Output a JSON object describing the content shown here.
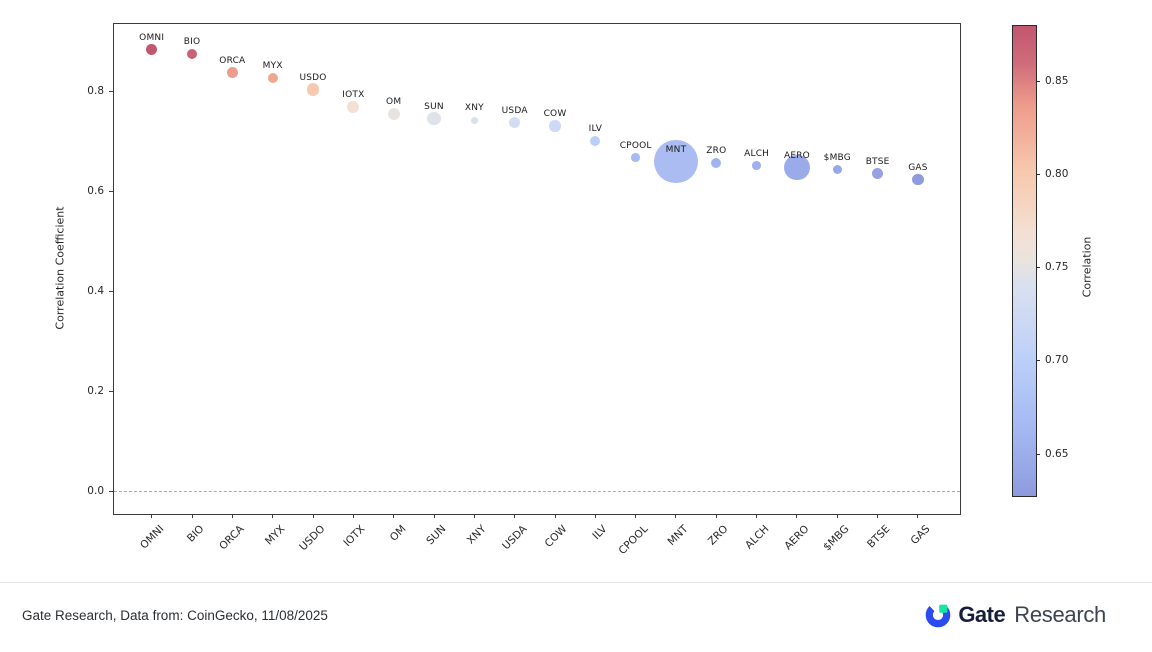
{
  "chart_data": {
    "type": "scatter",
    "title": "",
    "xlabel": "",
    "ylabel": "Correlation Coefficient",
    "ylim": [
      -0.046,
      0.934
    ],
    "grid": false,
    "y_ticks": [
      {
        "label": "0.0",
        "value": 0.0
      },
      {
        "label": "0.2",
        "value": 0.2
      },
      {
        "label": "0.4",
        "value": 0.4
      },
      {
        "label": "0.6",
        "value": 0.6
      },
      {
        "label": "0.8",
        "value": 0.8
      }
    ],
    "zero_line": {
      "value": 0.0,
      "style": "dashed",
      "color": "#aaaaaa"
    },
    "points": [
      {
        "label": "OMNI",
        "correlation": 0.883,
        "bubble_radius_px": 5.7,
        "color": "#c2566f"
      },
      {
        "label": "BIO",
        "correlation": 0.874,
        "bubble_radius_px": 5.3,
        "color": "#ca6174"
      },
      {
        "label": "ORCA",
        "correlation": 0.837,
        "bubble_radius_px": 5.7,
        "color": "#ee9c8b"
      },
      {
        "label": "MYX",
        "correlation": 0.826,
        "bubble_radius_px": 5.0,
        "color": "#f0a78f"
      },
      {
        "label": "USDO",
        "correlation": 0.803,
        "bubble_radius_px": 6.3,
        "color": "#f7c9ae"
      },
      {
        "label": "IOTX",
        "correlation": 0.768,
        "bubble_radius_px": 6.0,
        "color": "#f3e0d5"
      },
      {
        "label": "OM",
        "correlation": 0.755,
        "bubble_radius_px": 6.0,
        "color": "#e9e3df"
      },
      {
        "label": "SUN",
        "correlation": 0.745,
        "bubble_radius_px": 6.7,
        "color": "#dfe2e8"
      },
      {
        "label": "XNY",
        "correlation": 0.742,
        "bubble_radius_px": 3.5,
        "color": "#dae0ee"
      },
      {
        "label": "USDA",
        "correlation": 0.737,
        "bubble_radius_px": 5.7,
        "color": "#d3ddf4"
      },
      {
        "label": "COW",
        "correlation": 0.73,
        "bubble_radius_px": 5.7,
        "color": "#ccdaf8"
      },
      {
        "label": "ILV",
        "correlation": 0.701,
        "bubble_radius_px": 5.0,
        "color": "#bccff8"
      },
      {
        "label": "CPOOL",
        "correlation": 0.667,
        "bubble_radius_px": 4.3,
        "color": "#a7baf3"
      },
      {
        "label": "MNT",
        "correlation": 0.659,
        "bubble_radius_px": 21.7,
        "color": "#aabcf2"
      },
      {
        "label": "ZRO",
        "correlation": 0.657,
        "bubble_radius_px": 5.0,
        "color": "#a2b4f0"
      },
      {
        "label": "ALCH",
        "correlation": 0.651,
        "bubble_radius_px": 4.3,
        "color": "#9fb0ed"
      },
      {
        "label": "AERO",
        "correlation": 0.647,
        "bubble_radius_px": 12.7,
        "color": "#9babe9"
      },
      {
        "label": "$MBG",
        "correlation": 0.643,
        "bubble_radius_px": 4.7,
        "color": "#98a8e7"
      },
      {
        "label": "BTSE",
        "correlation": 0.635,
        "bubble_radius_px": 5.7,
        "color": "#94a2e3"
      },
      {
        "label": "GAS",
        "correlation": 0.623,
        "bubble_radius_px": 5.7,
        "color": "#8e9bde"
      }
    ],
    "colorbar": {
      "label": "Correlation",
      "vmin": 0.628,
      "vmax": 0.8805,
      "ticks": [
        {
          "label": "0.85",
          "value": 0.85
        },
        {
          "label": "0.80",
          "value": 0.8
        },
        {
          "label": "0.75",
          "value": 0.75
        },
        {
          "label": "0.70",
          "value": 0.7
        },
        {
          "label": "0.65",
          "value": 0.65
        }
      ],
      "gradient_stops": [
        {
          "pos": 0.0,
          "color": "#c2566f"
        },
        {
          "pos": 0.08,
          "color": "#cf6c7b"
        },
        {
          "pos": 0.17,
          "color": "#ee9c8b"
        },
        {
          "pos": 0.31,
          "color": "#f7c9ae"
        },
        {
          "pos": 0.445,
          "color": "#f3e0d5"
        },
        {
          "pos": 0.5,
          "color": "#e9e3df"
        },
        {
          "pos": 0.55,
          "color": "#dae0ee"
        },
        {
          "pos": 0.635,
          "color": "#cbd8f5"
        },
        {
          "pos": 0.71,
          "color": "#bccff8"
        },
        {
          "pos": 0.845,
          "color": "#a7baf3"
        },
        {
          "pos": 0.94,
          "color": "#98a8e7"
        },
        {
          "pos": 1.0,
          "color": "#8e9ade"
        }
      ]
    }
  },
  "footer": {
    "source_text": "Gate Research, Data from: CoinGecko, 11/08/2025",
    "logo": {
      "brand": "Gate",
      "suffix": "Research"
    }
  },
  "colors": {
    "brand_blue": "#2b4bf0",
    "brand_green": "#17e6a1",
    "brand_navy": "#171e3c",
    "axis_text": "#262626"
  }
}
